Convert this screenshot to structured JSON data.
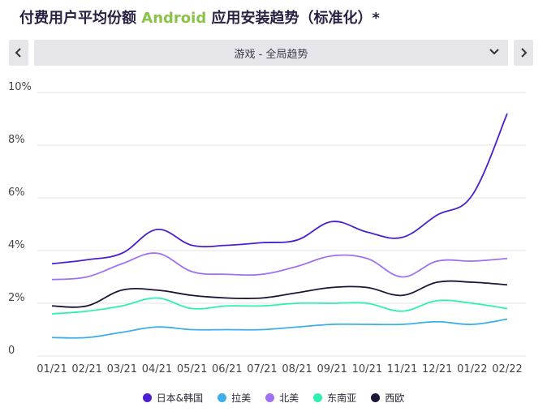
{
  "header": {
    "title_prefix": "付费用户平均份额",
    "title_accent": "Android",
    "title_suffix": "应用安装趋势（标准化）*",
    "accent_color": "#8bc34a"
  },
  "controls": {
    "prev_icon": "chevron-left-icon",
    "next_icon": "chevron-right-icon",
    "select_value": "游戏 - 全局趋势",
    "select_icon": "chevron-down-icon"
  },
  "chart_data": {
    "type": "line",
    "ylim": [
      0,
      10
    ],
    "yticks": [
      {
        "value": 0,
        "label": "0"
      },
      {
        "value": 2,
        "label": "2%"
      },
      {
        "value": 4,
        "label": "4%"
      },
      {
        "value": 6,
        "label": "6%"
      },
      {
        "value": 8,
        "label": "8%"
      },
      {
        "value": 10,
        "label": "10%"
      }
    ],
    "grid": true,
    "legend_position": "bottom",
    "categories": [
      "01/21",
      "02/21",
      "03/21",
      "04/21",
      "05/21",
      "06/21",
      "07/21",
      "08/21",
      "09/21",
      "10/21",
      "11/21",
      "12/21",
      "01/22",
      "02/22"
    ],
    "series": [
      {
        "name": "日本&韩国",
        "color": "#4b1fd1",
        "values": [
          3.5,
          3.65,
          3.9,
          4.8,
          4.2,
          4.2,
          4.3,
          4.4,
          5.1,
          4.7,
          4.5,
          5.35,
          6.1,
          9.2
        ]
      },
      {
        "name": "拉美",
        "color": "#3daee9",
        "values": [
          0.7,
          0.7,
          0.9,
          1.1,
          1.0,
          1.0,
          1.0,
          1.1,
          1.2,
          1.2,
          1.2,
          1.3,
          1.2,
          1.4
        ]
      },
      {
        "name": "北美",
        "color": "#a071f0",
        "values": [
          2.9,
          3.0,
          3.5,
          3.9,
          3.2,
          3.1,
          3.1,
          3.4,
          3.8,
          3.7,
          3.0,
          3.6,
          3.6,
          3.7
        ]
      },
      {
        "name": "东南亚",
        "color": "#2ef0b0",
        "values": [
          1.6,
          1.7,
          1.9,
          2.2,
          1.8,
          1.9,
          1.9,
          2.0,
          2.0,
          2.0,
          1.7,
          2.1,
          2.0,
          1.8
        ]
      },
      {
        "name": "西欧",
        "color": "#1e1437",
        "values": [
          1.9,
          1.9,
          2.5,
          2.5,
          2.3,
          2.2,
          2.2,
          2.4,
          2.6,
          2.6,
          2.3,
          2.8,
          2.8,
          2.7
        ]
      }
    ]
  }
}
